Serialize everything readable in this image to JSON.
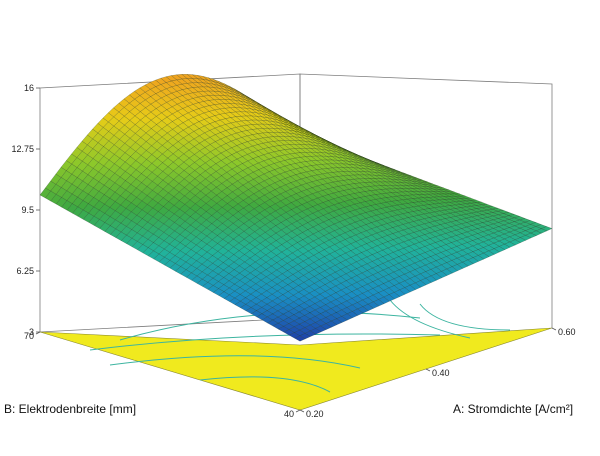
{
  "chart_data": {
    "type": "surface",
    "x_axis": {
      "label": "A: Stromdichte [A/cm²]",
      "ticks": [
        "0.20",
        "0.40",
        "0.60"
      ],
      "range": [
        0.2,
        0.6
      ]
    },
    "y_axis": {
      "label": "B: Elektrodenbreite [mm]",
      "ticks": [
        "40",
        "70"
      ],
      "range": [
        40,
        70
      ]
    },
    "z_axis": {
      "ticks": [
        "3",
        "6.25",
        "9.5",
        "12.75",
        "16"
      ],
      "range": [
        3,
        16
      ]
    },
    "surface": {
      "description_values": [
        {
          "A": 0.2,
          "B": 40,
          "z": 3.2
        },
        {
          "A": 0.6,
          "B": 40,
          "z": 8.3
        },
        {
          "A": 0.2,
          "B": 70,
          "z": 10.3
        },
        {
          "A": 0.6,
          "B": 70,
          "z": 12.8
        },
        {
          "A": 0.4,
          "B": 70,
          "z": 16.3
        }
      ],
      "colormap": [
        "#1f3fa8",
        "#1a8fc4",
        "#21b39a",
        "#3fa940",
        "#8ec82a",
        "#e6cc18",
        "#f0a020"
      ]
    },
    "floor_color": "#f0ea1e",
    "floor_contour_color": "#3cb4a0",
    "grid": false
  }
}
